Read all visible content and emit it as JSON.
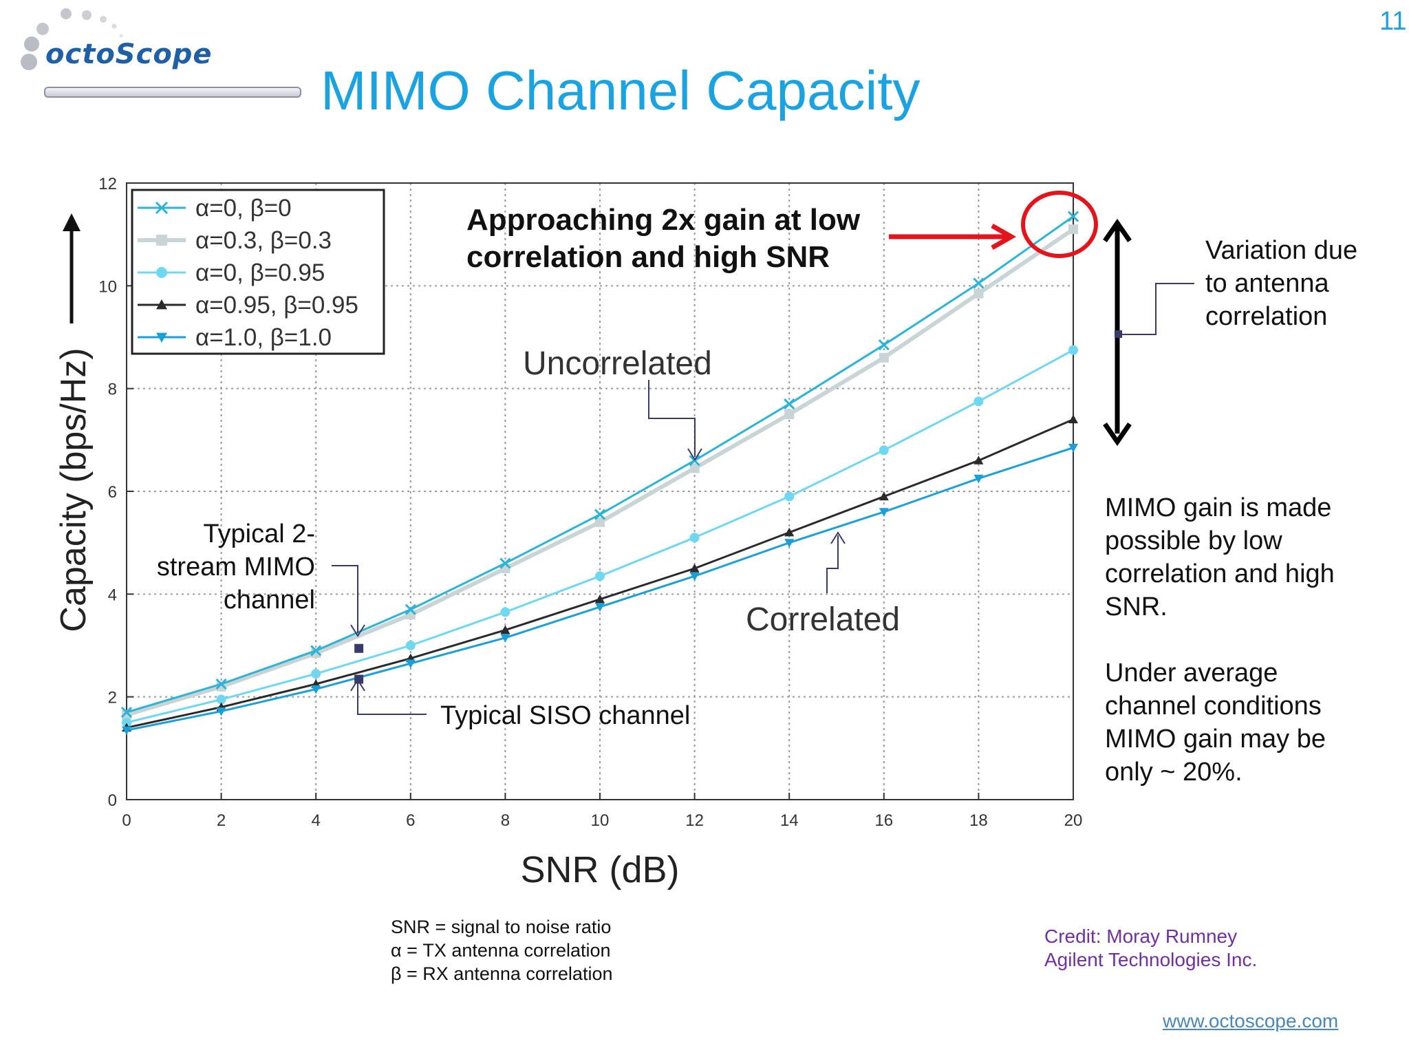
{
  "header": {
    "logo_text": "octoScope",
    "title": "MIMO Channel Capacity",
    "slide_number": "11"
  },
  "colors": {
    "title": "#1aa3e0",
    "red_highlight": "#e3141b",
    "series": [
      "#2bb3d8",
      "#c8d4d6",
      "#6fd8f0",
      "#2a2a2a",
      "#1a9fd6"
    ],
    "credit": "#7030a0",
    "link": "#4a86b6"
  },
  "chart_data": {
    "type": "line",
    "xlabel": "SNR (dB)",
    "ylabel": "Capacity (bps/Hz)",
    "xlim": [
      0,
      20
    ],
    "ylim": [
      0,
      12
    ],
    "x_ticks": [
      "0",
      "2",
      "4",
      "6",
      "8",
      "10",
      "12",
      "14",
      "16",
      "18",
      "20"
    ],
    "y_ticks": [
      "0",
      "2",
      "4",
      "6",
      "8",
      "10",
      "12"
    ],
    "grid": true,
    "legend_position": "top-left",
    "x": [
      0,
      2,
      4,
      6,
      8,
      10,
      12,
      14,
      16,
      18,
      20
    ],
    "series": [
      {
        "name": "α=0, β=0",
        "marker": "x",
        "values": [
          1.7,
          2.25,
          2.9,
          3.7,
          4.6,
          5.55,
          6.6,
          7.7,
          8.85,
          10.05,
          11.35
        ]
      },
      {
        "name": "α=0.3, β=0.3",
        "marker": "square",
        "values": [
          1.65,
          2.2,
          2.85,
          3.6,
          4.5,
          5.4,
          6.45,
          7.5,
          8.6,
          9.85,
          11.1
        ]
      },
      {
        "name": "α=0, β=0.95",
        "marker": "circle",
        "values": [
          1.5,
          1.95,
          2.45,
          3.0,
          3.65,
          4.35,
          5.1,
          5.9,
          6.8,
          7.75,
          8.75
        ]
      },
      {
        "name": "α=0.95, β=0.95",
        "marker": "triangle-up",
        "values": [
          1.4,
          1.8,
          2.25,
          2.75,
          3.3,
          3.9,
          4.5,
          5.2,
          5.9,
          6.6,
          7.4
        ]
      },
      {
        "name": "α=1.0, β=1.0",
        "marker": "triangle-down",
        "values": [
          1.35,
          1.72,
          2.15,
          2.65,
          3.15,
          3.75,
          4.35,
          5.0,
          5.6,
          6.25,
          6.85
        ]
      }
    ],
    "annotations": {
      "approaching": [
        "Approaching 2x gain at low",
        "correlation and high SNR"
      ],
      "uncorrelated": "Uncorrelated",
      "correlated": "Correlated",
      "mimo_channel": [
        "Typical 2-",
        "stream MIMO",
        "channel"
      ],
      "siso_channel": "Typical SISO channel"
    },
    "markers": {
      "mimo_point": {
        "x": 4.9,
        "y": 2.95
      },
      "siso_point": {
        "x": 4.9,
        "y": 2.35
      }
    }
  },
  "notes": {
    "variation": [
      "Variation due",
      "to antenna",
      "correlation"
    ],
    "gain": [
      "MIMO gain is made",
      "possible by low",
      "correlation and high",
      "SNR."
    ],
    "average": [
      "Under average",
      "channel conditions",
      "MIMO gain may be",
      "only ~ 20%."
    ]
  },
  "definitions": [
    "SNR = signal to noise ratio",
    "α = TX antenna correlation",
    "β = RX antenna correlation"
  ],
  "credit": [
    "Credit:  Moray Rumney",
    "Agilent Technologies Inc."
  ],
  "website": "www.octoscope.com"
}
